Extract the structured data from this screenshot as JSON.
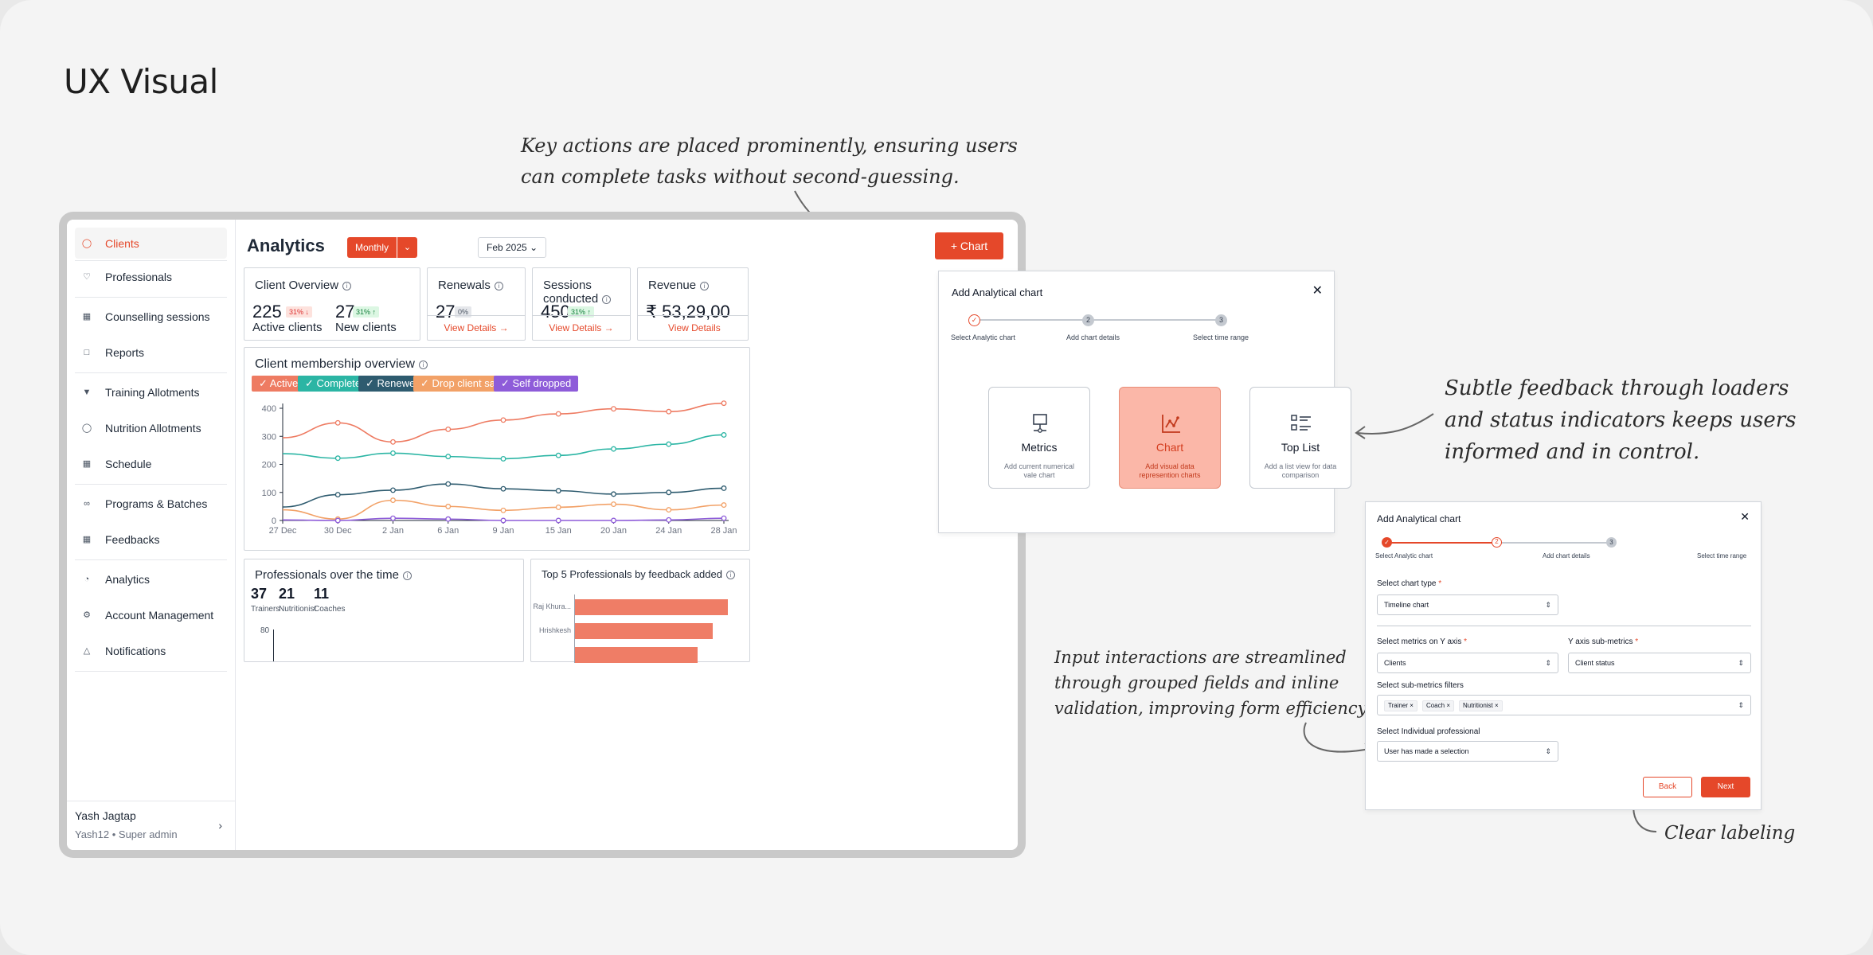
{
  "page": {
    "title": "UX Visual"
  },
  "annotations": {
    "key_actions": [
      "Key actions are placed prominently, ensuring users",
      "can complete tasks without second-guessing."
    ],
    "feedback": [
      "Subtle feedback through loaders",
      "and status indicators keeps users",
      "informed and in control."
    ],
    "inputs": [
      "Input interactions are streamlined",
      "through grouped fields and inline",
      "validation, improving form efficiency."
    ],
    "labeling": "Clear labeling"
  },
  "sidebar": {
    "items": [
      {
        "label": "Clients",
        "icon": "user-icon",
        "active": true
      },
      {
        "label": "Professionals",
        "icon": "badge-icon"
      },
      {
        "label": "Counselling sessions",
        "icon": "calendar-icon"
      },
      {
        "label": "Reports",
        "icon": "file-icon"
      },
      {
        "label": "Training Allotments",
        "icon": "pin-icon"
      },
      {
        "label": "Nutrition Allotments",
        "icon": "bowl-icon"
      },
      {
        "label": "Schedule",
        "icon": "calendar-icon"
      },
      {
        "label": "Programs & Batches",
        "icon": "link-icon"
      },
      {
        "label": "Feedbacks",
        "icon": "message-icon"
      },
      {
        "label": "Analytics",
        "icon": "clock-icon"
      },
      {
        "label": "Account Management",
        "icon": "gear-icon"
      },
      {
        "label": "Notifications",
        "icon": "bell-icon"
      }
    ],
    "user": {
      "name": "Yash Jagtap",
      "role": "Yash12 • Super admin"
    }
  },
  "header": {
    "title": "Analytics",
    "period": "Monthly",
    "month": "Feb 2025",
    "chart_button": "Chart"
  },
  "cards": {
    "client_overview": {
      "title": "Client Overview",
      "active_value": "225",
      "active_change": "31%",
      "active_label": "Active clients",
      "new_value": "27",
      "new_change": "31%",
      "new_label": "New clients"
    },
    "renewals": {
      "title": "Renewals",
      "value": "27",
      "change": "0%",
      "link": "View Details"
    },
    "sessions": {
      "title": "Sessions conducted",
      "value": "450",
      "change": "31%",
      "link": "View Details"
    },
    "revenue": {
      "title": "Revenue",
      "value": "₹ 53,29,00",
      "link": "View Details"
    }
  },
  "membership": {
    "title": "Client membership overview",
    "legend": [
      {
        "label": "Active",
        "color": "#ee7b62"
      },
      {
        "label": "Completed",
        "color": "#2bb5a4"
      },
      {
        "label": "Renewed",
        "color": "#2e5b6f"
      },
      {
        "label": "Drop client sales",
        "color": "#f2a167"
      },
      {
        "label": "Self dropped",
        "color": "#8e5cd9"
      }
    ]
  },
  "chart_data": {
    "type": "line",
    "x": [
      "27 Dec",
      "30 Dec",
      "2 Jan",
      "6 Jan",
      "9 Jan",
      "15 Jan",
      "20 Jan",
      "24 Jan",
      "28 Jan"
    ],
    "yticks": [
      0,
      100,
      200,
      300,
      400
    ],
    "ylim": [
      0,
      400
    ],
    "series": [
      {
        "name": "Active",
        "color": "#ee7b62",
        "values": [
          295,
          348,
          280,
          325,
          358,
          380,
          398,
          388,
          418
        ]
      },
      {
        "name": "Completed",
        "color": "#2bb5a4",
        "values": [
          238,
          222,
          240,
          228,
          220,
          232,
          255,
          272,
          305
        ]
      },
      {
        "name": "Renewed",
        "color": "#2e5b6f",
        "values": [
          48,
          92,
          108,
          130,
          113,
          106,
          94,
          100,
          115
        ]
      },
      {
        "name": "Drop client sales",
        "color": "#f2a167",
        "values": [
          38,
          5,
          72,
          50,
          36,
          47,
          58,
          38,
          55
        ]
      },
      {
        "name": "Self dropped",
        "color": "#8e5cd9",
        "values": [
          2,
          0,
          8,
          5,
          0,
          0,
          0,
          2,
          8
        ]
      }
    ]
  },
  "professionals": {
    "title": "Professionals over the time",
    "stats": [
      {
        "value": "37",
        "label": "Trainers"
      },
      {
        "value": "21",
        "label": "Nutritionist"
      },
      {
        "value": "11",
        "label": "Coaches"
      }
    ],
    "ytick": "80"
  },
  "top5": {
    "title": "Top 5 Professionals by feedback added",
    "bars": [
      {
        "name": "Raj Khura...",
        "value": 1.0,
        "color": "#ef7d66"
      },
      {
        "name": "Hrishkesh",
        "value": 0.9,
        "color": "#ef7d66"
      },
      {
        "name": "",
        "value": 0.8,
        "color": "#ef7d66"
      }
    ]
  },
  "modal1": {
    "title": "Add Analytical chart",
    "steps": [
      {
        "num": "",
        "label": "Select Analytic chart"
      },
      {
        "num": "2",
        "label": "Add chart details"
      },
      {
        "num": "3",
        "label": "Select time range"
      }
    ],
    "options": [
      {
        "title": "Metrics",
        "desc": "Add current numerical vale chart",
        "icon": "monitor-icon"
      },
      {
        "title": "Chart",
        "desc": "Add visual data represention charts",
        "icon": "line-chart-icon",
        "selected": true
      },
      {
        "title": "Top List",
        "desc": "Add a list view for data comparison",
        "icon": "list-icon"
      }
    ]
  },
  "modal2": {
    "title": "Add Analytical chart",
    "steps": [
      {
        "num": "",
        "label": "Select Analytic chart"
      },
      {
        "num": "2",
        "label": "Add chart details"
      },
      {
        "num": "3",
        "label": "Select time range"
      }
    ],
    "chart_type_label": "Select chart type",
    "chart_type_value": "Timeline chart",
    "y_metrics_label": "Select metrics on Y axis",
    "y_metrics_value": "Clients",
    "y_sub_label": "Y axis sub-metrics",
    "y_sub_value": "Client status",
    "filters_label": "Select sub-metrics filters",
    "chips": [
      "Trainer",
      "Coach",
      "Nutritionist"
    ],
    "professional_label": "Select Individual professional",
    "professional_value": "User has made a selection",
    "back": "Back",
    "next": "Next"
  }
}
